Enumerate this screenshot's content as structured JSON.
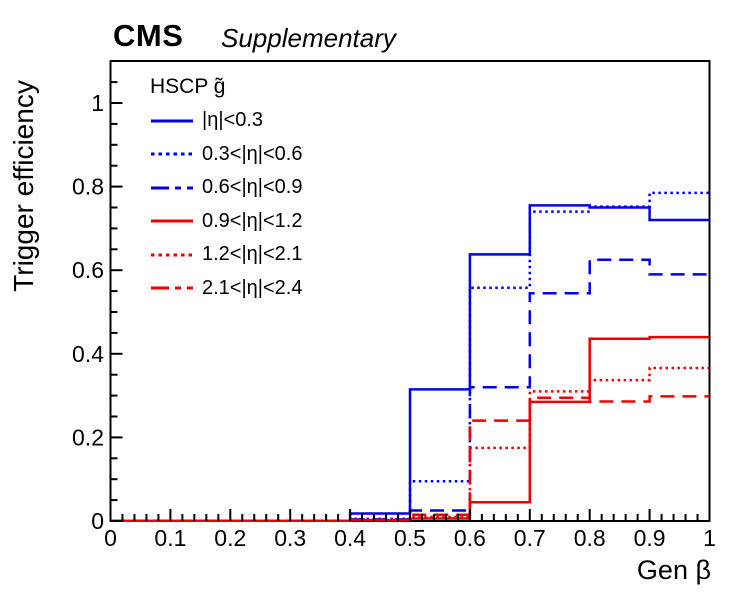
{
  "title": {
    "cms": "CMS",
    "subtitle": "Supplementary"
  },
  "axes": {
    "x": {
      "label": "Gen β",
      "range": [
        0,
        1
      ],
      "major_tick_values": [
        0,
        0.1,
        0.2,
        0.3,
        0.4,
        0.5,
        0.6,
        0.7,
        0.8,
        0.9,
        1
      ],
      "major_tick_labels": [
        "0",
        "0.1",
        "0.2",
        "0.3",
        "0.4",
        "0.5",
        "0.6",
        "0.7",
        "0.8",
        "0.9",
        "1"
      ],
      "minor_tick_step": 0.02
    },
    "y": {
      "label": "Trigger efficiency",
      "range": [
        0,
        1.1
      ],
      "major_tick_values": [
        0,
        0.2,
        0.4,
        0.6,
        0.8,
        1.0
      ],
      "major_tick_labels": [
        "0",
        "0.2",
        "0.4",
        "0.6",
        "0.8",
        "1"
      ],
      "minor_tick_step": 0.05
    }
  },
  "legend": {
    "header": "HSCP g̃",
    "entries": [
      {
        "label": "|η|<0.3",
        "color": "blue",
        "line_style": "solid"
      },
      {
        "label": "0.3<|η|<0.6",
        "color": "blue",
        "line_style": "dotted"
      },
      {
        "label": "0.6<|η|<0.9",
        "color": "blue",
        "line_style": "dashed"
      },
      {
        "label": "0.9<|η|<1.2",
        "color": "red",
        "line_style": "solid"
      },
      {
        "label": "1.2<|η|<2.1",
        "color": "red",
        "line_style": "dotted"
      },
      {
        "label": "2.1<|η|<2.4",
        "color": "red",
        "line_style": "dashed"
      }
    ]
  },
  "chart_data": {
    "type": "line",
    "subtype": "step-histogram",
    "title": "CMS Supplementary — HSCP g̃ trigger efficiency",
    "xlabel": "Gen β",
    "ylabel": "Trigger efficiency",
    "xlim": [
      0,
      1
    ],
    "ylim": [
      0,
      1.1
    ],
    "grid": false,
    "legend_position": "top-left-inside",
    "x_bin_edges": [
      0,
      0.1,
      0.2,
      0.3,
      0.4,
      0.5,
      0.6,
      0.7,
      0.8,
      0.9,
      1.0
    ],
    "series": [
      {
        "name": "|η|<0.3",
        "color": "blue",
        "line_style": "solid",
        "values": [
          0,
          0,
          0,
          0,
          0.018,
          0.315,
          0.638,
          0.755,
          0.75,
          0.72
        ]
      },
      {
        "name": "0.3<|η|<0.6",
        "color": "blue",
        "line_style": "dotted",
        "values": [
          0,
          0,
          0,
          0,
          0.005,
          0.095,
          0.558,
          0.74,
          0.752,
          0.785
        ]
      },
      {
        "name": "0.6<|η|<0.9",
        "color": "blue",
        "line_style": "dashed",
        "values": [
          0,
          0,
          0,
          0,
          0.004,
          0.025,
          0.32,
          0.545,
          0.625,
          0.59
        ]
      },
      {
        "name": "0.9<|η|<1.2",
        "color": "red",
        "line_style": "solid",
        "values": [
          0,
          0,
          0,
          0,
          0.002,
          0.006,
          0.045,
          0.285,
          0.436,
          0.44
        ]
      },
      {
        "name": "1.2<|η|<2.1",
        "color": "red",
        "line_style": "dotted",
        "values": [
          0,
          0,
          0,
          0,
          0.002,
          0.01,
          0.175,
          0.31,
          0.337,
          0.366
        ]
      },
      {
        "name": "2.1<|η|<2.4",
        "color": "red",
        "line_style": "dashed",
        "values": [
          0,
          0,
          0,
          0,
          0.002,
          0.015,
          0.24,
          0.295,
          0.286,
          0.298
        ]
      }
    ],
    "colors": {
      "blue": "#0000ee",
      "red": "#ee0000",
      "axis": "#000000"
    }
  }
}
